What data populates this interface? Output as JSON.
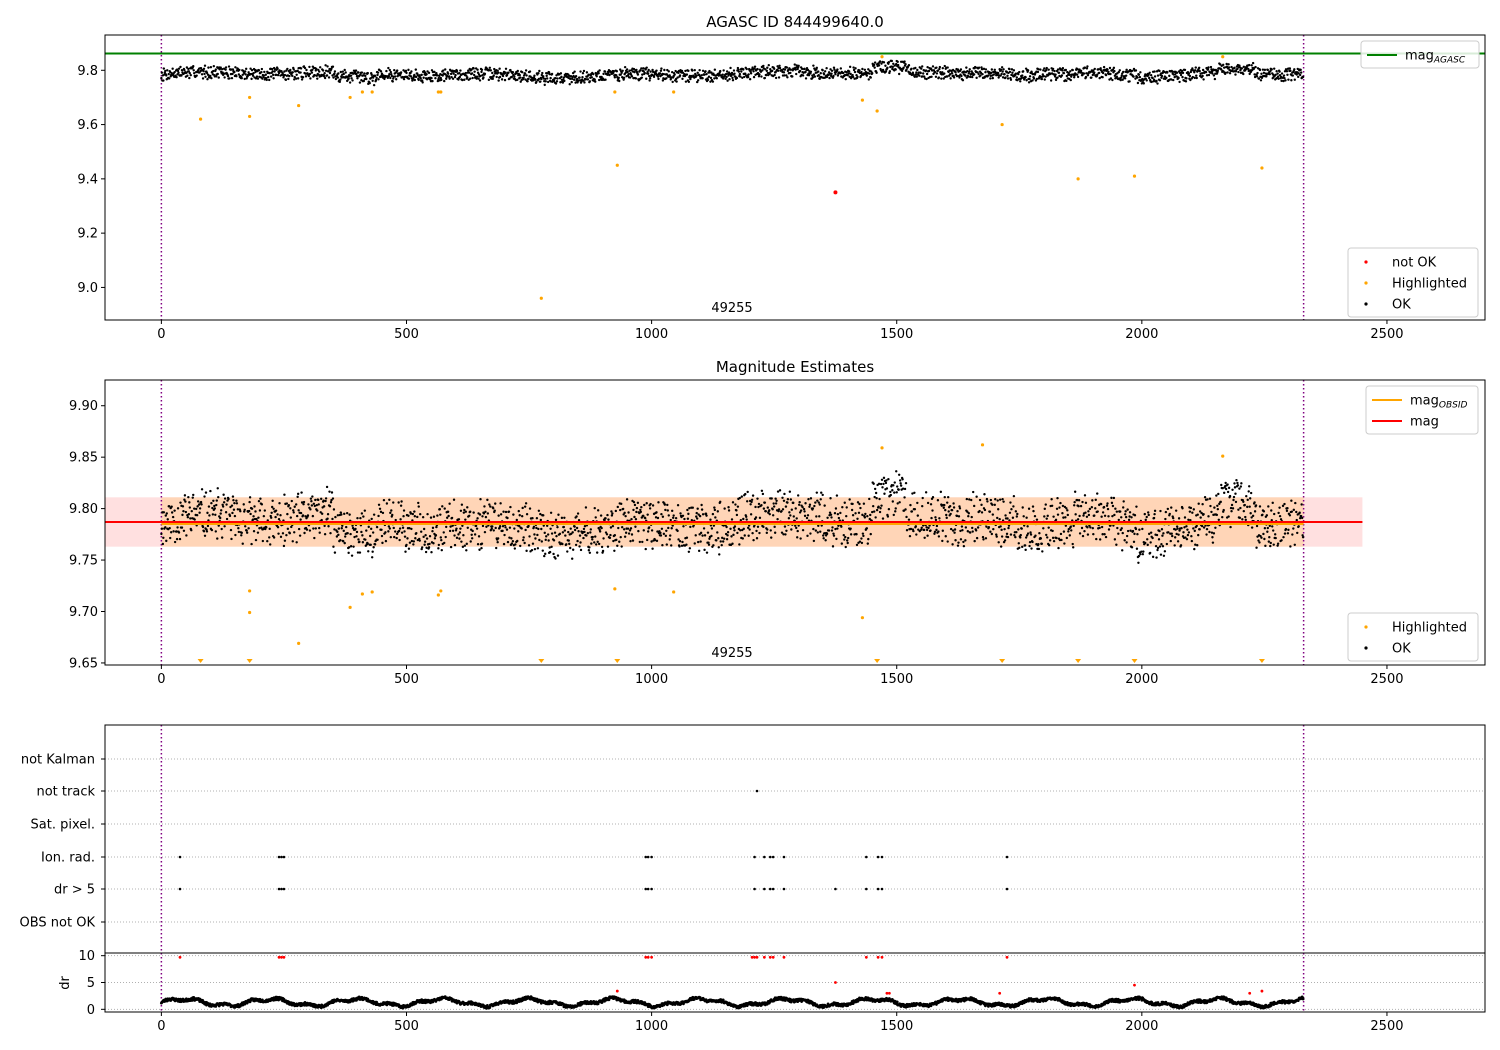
{
  "chart_data": [
    {
      "type": "scatter",
      "title": "AGASC ID 844499640.0",
      "annotation": "49255",
      "xlim": [
        -115,
        2700
      ],
      "ylim": [
        8.88,
        9.93
      ],
      "x_ticks": [
        0,
        500,
        1000,
        1500,
        2000,
        2500
      ],
      "y_ticks": [
        9.0,
        9.2,
        9.4,
        9.6,
        9.8
      ],
      "y_tick_decimals": 1,
      "obs_bounds": [
        0,
        2330
      ],
      "reference_line": {
        "name": "mag",
        "sub": "AGASC",
        "y": 9.862,
        "color": "#008000"
      },
      "legend_upper": [
        {
          "name": "mag",
          "sub": "AGASC",
          "color": "#008000",
          "kind": "line"
        }
      ],
      "legend_lower": [
        {
          "name": "not OK",
          "color": "#ff0000",
          "kind": "dot"
        },
        {
          "name": "Highlighted",
          "color": "#ffa500",
          "kind": "dot"
        },
        {
          "name": "OK",
          "color": "#000000",
          "kind": "dot"
        }
      ],
      "ok_series": {
        "name": "OK",
        "color": "#000000",
        "n": 2330,
        "base": 9.785,
        "amplitude": 0.025
      },
      "highlighted": {
        "name": "Highlighted",
        "color": "#ffa500",
        "x": [
          80,
          180,
          180,
          280,
          385,
          410,
          430,
          565,
          570,
          925,
          930,
          1045,
          1430,
          1460,
          1470,
          1715,
          1870,
          1985,
          2165,
          2245
        ],
        "y": [
          9.62,
          9.7,
          9.63,
          9.67,
          9.7,
          9.72,
          9.72,
          9.72,
          9.72,
          9.72,
          9.45,
          9.72,
          9.69,
          9.65,
          9.85,
          9.6,
          9.4,
          9.41,
          9.85,
          9.44
        ]
      },
      "not_ok": {
        "name": "not OK",
        "color": "#ff0000",
        "x": [
          1375
        ],
        "y": [
          9.35
        ]
      },
      "outlier_low": {
        "x": [
          775
        ],
        "y": [
          8.96
        ]
      }
    },
    {
      "type": "scatter",
      "title": "Magnitude Estimates",
      "annotation": "49255",
      "xlim": [
        -115,
        2700
      ],
      "ylim": [
        9.648,
        9.925
      ],
      "x_ticks": [
        0,
        500,
        1000,
        1500,
        2000,
        2500
      ],
      "y_ticks": [
        9.65,
        9.7,
        9.75,
        9.8,
        9.85,
        9.9
      ],
      "y_tick_decimals": 2,
      "obs_bounds": [
        0,
        2330
      ],
      "mag_line": {
        "name": "mag",
        "y": 9.787,
        "color": "#ff0000",
        "band": [
          9.763,
          9.811
        ],
        "x_range": [
          -115,
          2450
        ]
      },
      "mag_obsid": {
        "name": "mag",
        "sub": "OBSID",
        "y": 9.785,
        "color": "#ffa500",
        "band": [
          9.763,
          9.811
        ],
        "x_range": [
          0,
          2330
        ]
      },
      "legend_upper": [
        {
          "name": "mag",
          "sub": "OBSID",
          "color": "#ffa500",
          "kind": "line"
        },
        {
          "name": "mag",
          "sub": "",
          "color": "#ff0000",
          "kind": "line"
        }
      ],
      "legend_lower": [
        {
          "name": "Highlighted",
          "color": "#ffa500",
          "kind": "dot"
        },
        {
          "name": "OK",
          "color": "#000000",
          "kind": "dot"
        }
      ],
      "ok_series": {
        "name": "OK",
        "color": "#000000",
        "n": 2330,
        "base": 9.785,
        "amplitude": 0.025
      },
      "highlighted": {
        "name": "Highlighted",
        "color": "#ffa500",
        "x": [
          180,
          180,
          280,
          385,
          410,
          430,
          565,
          570,
          925,
          1045,
          1430,
          1470,
          1675,
          2165
        ],
        "y": [
          9.72,
          9.699,
          9.669,
          9.704,
          9.717,
          9.719,
          9.716,
          9.72,
          9.722,
          9.719,
          9.694,
          9.859,
          9.862,
          9.851
        ]
      },
      "below_range_markers": {
        "color": "#ffa500",
        "x": [
          80,
          180,
          775,
          930,
          1460,
          1715,
          1870,
          1985,
          2245
        ]
      }
    },
    {
      "type": "scatter",
      "title": "",
      "xlim": [
        -115,
        2700
      ],
      "x_ticks": [
        0,
        500,
        1000,
        1500,
        2000,
        2500
      ],
      "obs_bounds": [
        0,
        2330
      ],
      "flag_categories": [
        "not Kalman",
        "not track",
        "Sat. pixel.",
        "Ion. rad.",
        "dr > 5",
        "OBS not OK"
      ],
      "flags": {
        "not Kalman": [],
        "not track": [
          1215
        ],
        "Sat. pixel.": [],
        "Ion. rad.": [
          38,
          240,
          245,
          250,
          988,
          993,
          1000,
          1210,
          1230,
          1242,
          1248,
          1270,
          1438,
          1462,
          1470,
          1725
        ],
        "dr > 5": [
          38,
          240,
          245,
          250,
          988,
          993,
          1000,
          1210,
          1230,
          1242,
          1248,
          1270,
          1375,
          1438,
          1462,
          1470,
          1725
        ],
        "OBS not OK": []
      },
      "dr_ylabel": "dr",
      "dr_ylim": [
        -0.5,
        10.5
      ],
      "dr_yticks": [
        0,
        5,
        10
      ],
      "dr_red": {
        "color": "#ff0000",
        "x": [
          38,
          240,
          245,
          250,
          930,
          988,
          993,
          1000,
          1205,
          1210,
          1215,
          1230,
          1242,
          1248,
          1270,
          1375,
          1438,
          1462,
          1470,
          1480,
          1485,
          1710,
          1725,
          1985,
          2220,
          2245
        ],
        "y": [
          9.7,
          9.7,
          9.7,
          9.7,
          3.4,
          9.7,
          9.7,
          9.7,
          9.7,
          9.7,
          9.7,
          9.7,
          9.7,
          9.7,
          9.7,
          5.0,
          9.7,
          9.7,
          9.7,
          3.0,
          3.0,
          3.0,
          9.7,
          4.5,
          3.0,
          3.4
        ]
      },
      "dr_ok": {
        "color": "#000000",
        "n": 2330,
        "base": 1.3,
        "amplitude": 1.1
      }
    }
  ]
}
